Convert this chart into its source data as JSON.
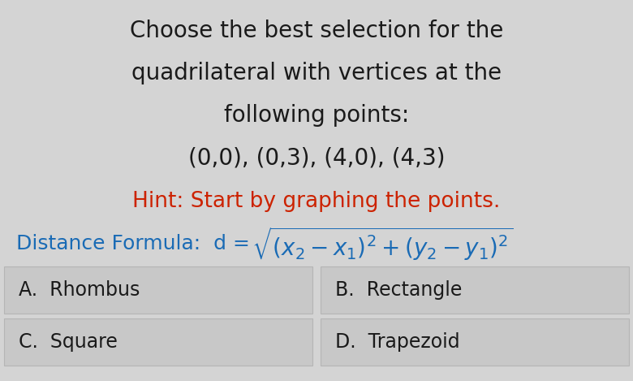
{
  "bg_color": "#d4d4d4",
  "title_lines": [
    "Choose the best selection for the",
    "quadrilateral with vertices at the",
    "following points:",
    "(0,0), (0,3), (4,0), (4,3)"
  ],
  "title_color": "#1a1a1a",
  "hint_text": "Hint: Start by graphing the points.",
  "hint_color": "#cc2200",
  "formula_color": "#1a6bb5",
  "choices": [
    [
      "A.  Rhombus",
      "B.  Rectangle"
    ],
    [
      "C.  Square",
      "D.  Trapezoid"
    ]
  ],
  "choice_color": "#1a1a1a",
  "choice_bg": "#c8c8c8",
  "choice_border": "#b5b5b5",
  "title_fontsize": 20,
  "hint_fontsize": 19,
  "formula_fontsize": 18,
  "choice_fontsize": 17
}
